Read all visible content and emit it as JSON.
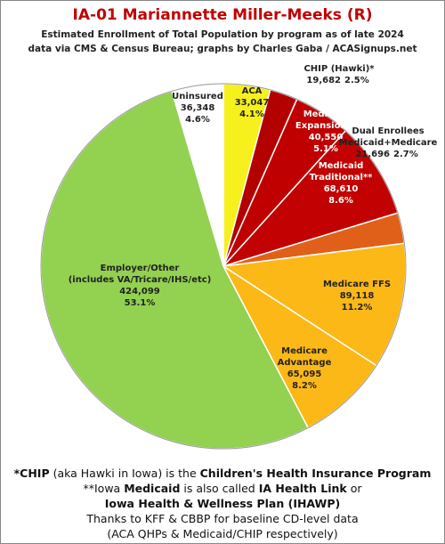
{
  "chart_data": {
    "type": "pie",
    "title": "IA-01 Mariannette Miller-Meeks (R)",
    "subtitle": [
      "Estimated Enrollment of Total Population by program as of late 2024",
      "data via CMS & Census Bureau; graphs by Charles Gaba / ACASignups.net"
    ],
    "categories": [
      "ACA",
      "CHIP (Hawki)*",
      "Medicaid\nExpansion**",
      "Medicaid\nTraditional**",
      "Dual Enrollees\nMedicaid+Medicare",
      "Medicare FFS",
      "Medicare\nAdvantage",
      "Employer/Other\n(includes VA/Tricare/IHS/etc)",
      "Uninsured"
    ],
    "values": [
      33047,
      19682,
      40550,
      68610,
      21696,
      89118,
      65095,
      424099,
      36348
    ],
    "value_labels": [
      "33,047",
      "19,682",
      "40,550",
      "68,610",
      "21,696",
      "89,118",
      "65,095",
      "424,099",
      "36,348"
    ],
    "percent_labels": [
      "4.1%",
      "2.5%",
      "5.1%",
      "8.6%",
      "2.7%",
      "11.2%",
      "8.2%",
      "53.1%",
      "4.6%"
    ],
    "colors": [
      "#f6f01c",
      "#b30000",
      "#c00000",
      "#c20202",
      "#e0601a",
      "#fcb817",
      "#fcb817",
      "#93d150",
      "#ffffff"
    ],
    "notes": {
      "line1": [
        "*CHIP",
        " (aka Hawki in Iowa) is the ",
        "Children's Health Insurance Program"
      ],
      "line2": [
        "**Iowa ",
        "Medicaid",
        " is also called ",
        "IA Health Link",
        " or"
      ],
      "line3": "Iowa Health & Wellness Plan (IHAWP)",
      "line4": "Thanks to KFF & CBBP for baseline CD-level data",
      "line5": "(ACA QHPs & Medicaid/CHIP respectively)"
    }
  }
}
